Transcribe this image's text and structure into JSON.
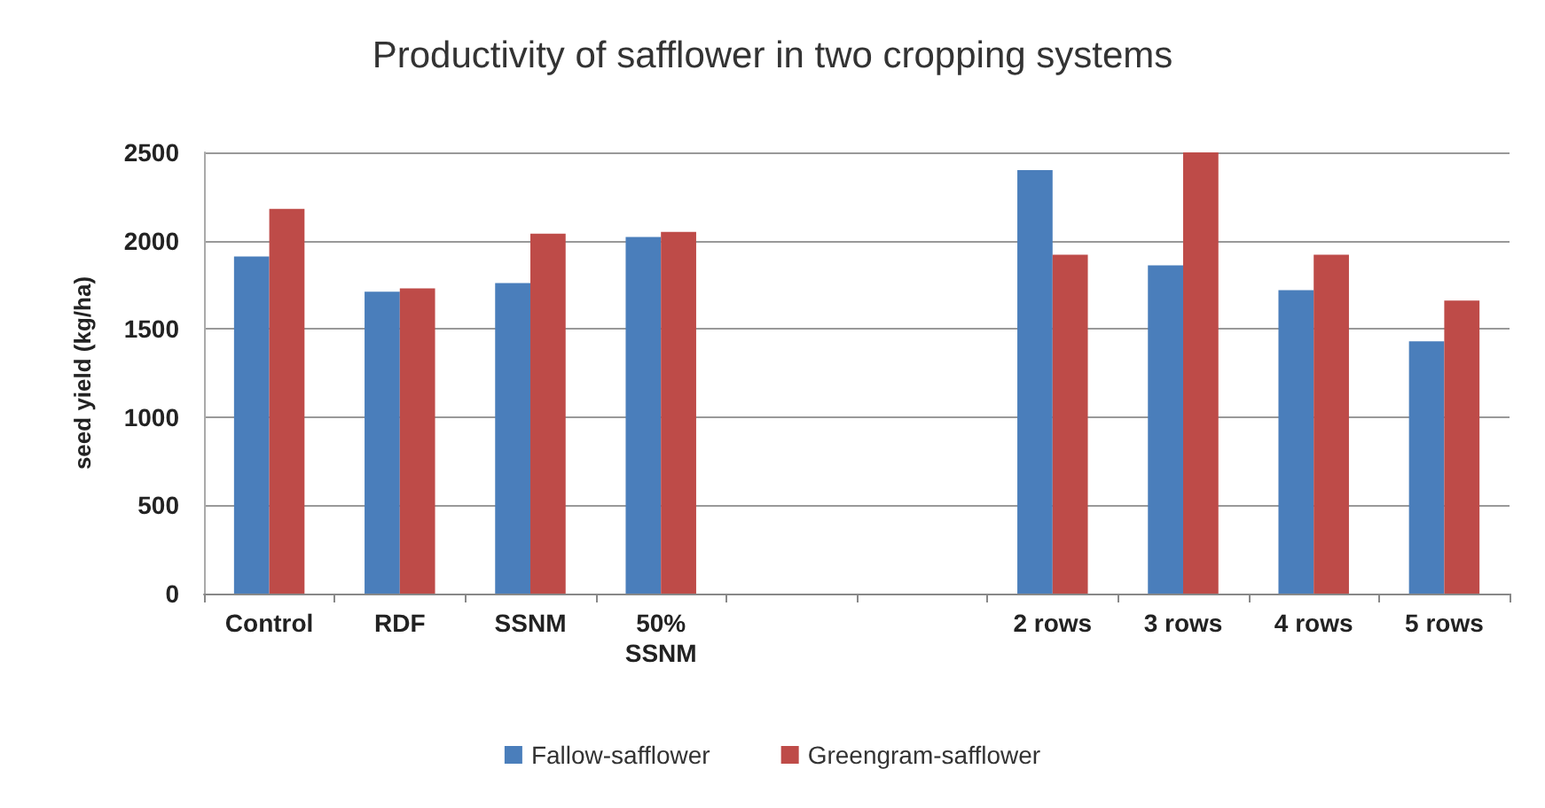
{
  "chart_data": {
    "type": "bar",
    "title": "Productivity of safflower in two cropping systems",
    "ylabel": "seed yield (kg/ha)",
    "categories": [
      "Control",
      "RDF",
      "SSNM",
      "50%\nSSNM",
      null,
      null,
      "2 rows",
      "3 rows",
      "4 rows",
      "5 rows"
    ],
    "series": [
      {
        "name": "Fallow-safflower",
        "color": "#4a7ebb",
        "values": [
          1910,
          1710,
          1760,
          2020,
          null,
          null,
          2400,
          1860,
          1720,
          1430
        ]
      },
      {
        "name": "Greengram-safflower",
        "color": "#be4b48",
        "values": [
          2180,
          1730,
          2040,
          2050,
          null,
          null,
          1920,
          2500,
          1920,
          1660
        ]
      }
    ],
    "ylim": [
      0,
      2500
    ],
    "yticks": [
      0,
      500,
      1000,
      1500,
      2000,
      2500
    ],
    "grid": "y",
    "legend": "bottom"
  }
}
